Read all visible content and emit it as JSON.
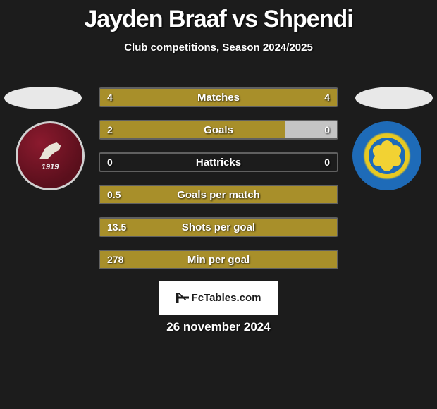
{
  "title": "Jayden Braaf vs Shpendi",
  "subtitle": "Club competitions, Season 2024/2025",
  "date": "26 november 2024",
  "logo_text": "FcTables.com",
  "badge_left": {
    "year": "1919",
    "bg_color": "#6b1423",
    "border_color": "#d0d0d0"
  },
  "badge_right": {
    "outer_color": "#1e6bb8",
    "inner_color": "#f2d233"
  },
  "colors": {
    "left_bar": "#a88f2a",
    "right_bar": "#a88f2a",
    "background": "#1c1c1c",
    "text": "#ffffff",
    "oval": "#e8e8e8",
    "logo_bg": "#ffffff",
    "logo_text": "#1a1a1a"
  },
  "bars": [
    {
      "label": "Matches",
      "left_value": "4",
      "right_value": "4",
      "left_fill_pct": 50,
      "right_fill_pct": 50,
      "left_color": "#a88f2a",
      "right_color": "#a88f2a",
      "label_fontsize": 15
    },
    {
      "label": "Goals",
      "left_value": "2",
      "right_value": "0",
      "left_fill_pct": 78,
      "right_fill_pct": 22,
      "left_color": "#a88f2a",
      "right_color": "#c4c4c4",
      "label_fontsize": 15
    },
    {
      "label": "Hattricks",
      "left_value": "0",
      "right_value": "0",
      "left_fill_pct": 0,
      "right_fill_pct": 0,
      "left_color": "#a88f2a",
      "right_color": "#a88f2a",
      "label_fontsize": 15
    },
    {
      "label": "Goals per match",
      "left_value": "0.5",
      "right_value": "",
      "left_fill_pct": 100,
      "right_fill_pct": 0,
      "left_color": "#a88f2a",
      "right_color": "#a88f2a",
      "label_fontsize": 15
    },
    {
      "label": "Shots per goal",
      "left_value": "13.5",
      "right_value": "",
      "left_fill_pct": 100,
      "right_fill_pct": 0,
      "left_color": "#a88f2a",
      "right_color": "#a88f2a",
      "label_fontsize": 15
    },
    {
      "label": "Min per goal",
      "left_value": "278",
      "right_value": "",
      "left_fill_pct": 100,
      "right_fill_pct": 0,
      "left_color": "#a88f2a",
      "right_color": "#a88f2a",
      "label_fontsize": 15
    }
  ]
}
